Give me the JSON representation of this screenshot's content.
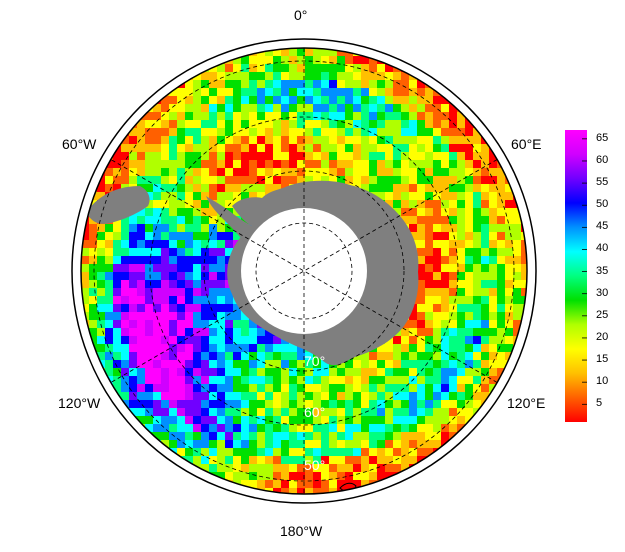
{
  "map": {
    "projection": "south-polar-stereographic",
    "colors": {
      "land": "#7f7f7f",
      "pole_hole": "#ffffff",
      "frame": "#000000",
      "graticule": "#000000",
      "lat_label": "#ffffff"
    },
    "longitude_labels": {
      "top": "0°",
      "upper_left": "60°W",
      "upper_right": "60°E",
      "lower_left": "120°W",
      "lower_right": "120°E",
      "bottom": "180°W"
    },
    "latitude_labels": [
      "70°",
      "60°",
      "50°"
    ],
    "colorbar": {
      "ticks": [
        "5",
        "10",
        "15",
        "20",
        "25",
        "30",
        "35",
        "40",
        "45",
        "50",
        "55",
        "60",
        "65"
      ],
      "value_range": [
        1,
        67
      ],
      "colormap": [
        "#ff0000",
        "#ff6000",
        "#ffc000",
        "#ffff00",
        "#b0ff00",
        "#00e000",
        "#00ff80",
        "#00ffff",
        "#0090ff",
        "#0000ff",
        "#7000ff",
        "#d000ff",
        "#ff00ff"
      ]
    }
  }
}
